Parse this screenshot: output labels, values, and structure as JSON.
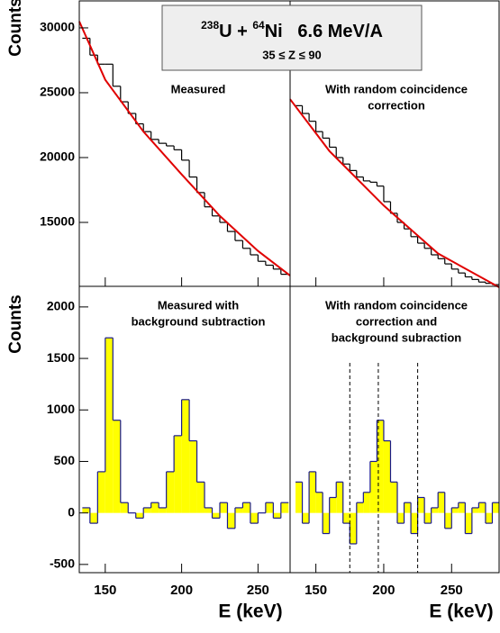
{
  "header": {
    "a_mass": "238",
    "a": "U + ",
    "b_mass": "64",
    "b": "Ni   6.6 MeV/A",
    "subtitle": "35 ≤ Z ≤ 90"
  },
  "chart_data": [
    {
      "type": "histogram",
      "panel_label": [
        "Measured"
      ],
      "ylabel": "Counts",
      "xlim": [
        133,
        271
      ],
      "ylim": [
        10070,
        32080
      ],
      "xticks": [
        150,
        200,
        250
      ],
      "yticks": [
        15000,
        20000,
        25000,
        30000
      ],
      "color": "#000000",
      "bins": [
        135,
        140,
        145,
        150,
        155,
        160,
        165,
        170,
        175,
        180,
        185,
        190,
        195,
        200,
        205,
        210,
        215,
        220,
        225,
        230,
        235,
        240,
        245,
        250,
        255,
        260,
        265,
        270
      ],
      "counts": [
        29200,
        27900,
        27200,
        27200,
        25500,
        24300,
        23400,
        22600,
        22000,
        21400,
        21100,
        20900,
        20600,
        19800,
        18500,
        17300,
        16200,
        15500,
        15000,
        14300,
        13600,
        13000,
        12500,
        12000,
        11700,
        11400,
        11000
      ],
      "fit": {
        "color": "#e00000",
        "x": [
          133,
          150,
          175,
          200,
          225,
          250,
          271
        ],
        "y": [
          30500,
          26000,
          22000,
          18700,
          15500,
          12800,
          10900
        ]
      }
    },
    {
      "type": "histogram",
      "panel_label": [
        "With random coincidence",
        "correction"
      ],
      "xlim": [
        131,
        285
      ],
      "ylim": [
        10070,
        32080
      ],
      "xticks": [
        150,
        200,
        250
      ],
      "color": "#000000",
      "bins": [
        135,
        140,
        145,
        150,
        155,
        160,
        165,
        170,
        175,
        180,
        185,
        190,
        195,
        200,
        205,
        210,
        215,
        220,
        225,
        230,
        235,
        240,
        245,
        250,
        255,
        260,
        265,
        270,
        275,
        280,
        285
      ],
      "counts": [
        24000,
        23400,
        22800,
        22000,
        21500,
        20800,
        20000,
        19500,
        19000,
        18500,
        18200,
        18100,
        17800,
        16600,
        15700,
        15000,
        14500,
        13900,
        13400,
        13000,
        12500,
        12200,
        11800,
        11400,
        11100,
        10800,
        10600,
        10400,
        10300,
        10200
      ],
      "fit": {
        "color": "#e00000",
        "x": [
          131,
          160,
          200,
          240,
          285
        ],
        "y": [
          24500,
          20500,
          16300,
          12600,
          10000
        ]
      }
    },
    {
      "type": "histogram",
      "panel_label": [
        "Measured with",
        "background subtraction"
      ],
      "ylabel": "Counts",
      "xlabel": "E (keV)",
      "xlim": [
        133,
        271
      ],
      "ylim": [
        -580,
        2200
      ],
      "xticks": [
        150,
        200,
        250
      ],
      "yticks": [
        -500,
        0,
        500,
        1000,
        1500,
        2000
      ],
      "color": "#1a1a8c",
      "fill": "#ffff00",
      "bins": [
        135,
        140,
        145,
        150,
        155,
        160,
        165,
        170,
        175,
        180,
        185,
        190,
        195,
        200,
        205,
        210,
        215,
        220,
        225,
        230,
        235,
        240,
        245,
        250,
        255,
        260,
        265,
        270
      ],
      "counts": [
        50,
        -100,
        400,
        1700,
        900,
        100,
        0,
        -50,
        50,
        100,
        50,
        400,
        750,
        1100,
        700,
        300,
        50,
        -50,
        100,
        -150,
        50,
        100,
        -100,
        0,
        100,
        -50,
        100
      ]
    },
    {
      "type": "histogram",
      "panel_label": [
        "With random coincidence",
        "correction and",
        "background subraction"
      ],
      "xlabel": "E (keV)",
      "xlim": [
        131,
        285
      ],
      "ylim": [
        -580,
        2200
      ],
      "xticks": [
        150,
        200,
        250
      ],
      "color": "#1a1a8c",
      "fill": "#ffff00",
      "vlines": [
        175,
        196,
        225
      ],
      "bins": [
        135,
        140,
        145,
        150,
        155,
        160,
        165,
        170,
        175,
        180,
        185,
        190,
        195,
        200,
        205,
        210,
        215,
        220,
        225,
        230,
        235,
        240,
        245,
        250,
        255,
        260,
        265,
        270,
        275,
        280,
        285
      ],
      "counts": [
        300,
        -100,
        400,
        200,
        -200,
        150,
        300,
        -100,
        -300,
        100,
        200,
        500,
        900,
        700,
        300,
        -100,
        100,
        -200,
        150,
        -100,
        50,
        200,
        -150,
        50,
        100,
        -200,
        50,
        100,
        -100,
        100
      ]
    }
  ]
}
